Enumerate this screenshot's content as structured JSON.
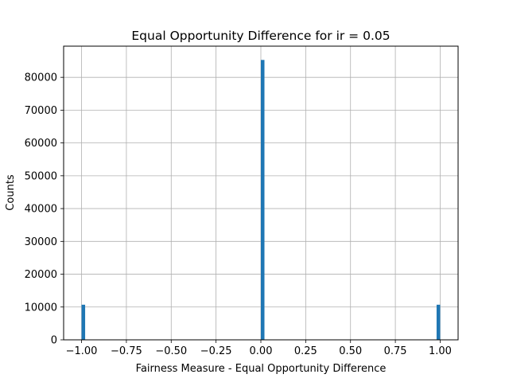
{
  "chart_data": {
    "type": "bar",
    "title": "Equal Opportunity Difference for ir = 0.05",
    "xlabel": "Fairness Measure - Equal Opportunity Difference",
    "ylabel": "Counts",
    "xlim": [
      -1.1,
      1.1
    ],
    "ylim": [
      0,
      89500
    ],
    "x_ticks": [
      -1.0,
      -0.75,
      -0.5,
      -0.25,
      0.0,
      0.25,
      0.5,
      0.75,
      1.0
    ],
    "x_tick_labels": [
      "−1.00",
      "−0.75",
      "−0.50",
      "−0.25",
      "0.00",
      "0.25",
      "0.50",
      "0.75",
      "1.00"
    ],
    "y_ticks": [
      0,
      10000,
      20000,
      30000,
      40000,
      50000,
      60000,
      70000,
      80000
    ],
    "y_tick_labels": [
      "0",
      "10000",
      "20000",
      "30000",
      "40000",
      "50000",
      "60000",
      "70000",
      "80000"
    ],
    "grid": true,
    "bin_width": 0.02,
    "bars": [
      {
        "x_start": -1.0,
        "x_end": -0.98,
        "value": 10700
      },
      {
        "x_start": 0.0,
        "x_end": 0.02,
        "value": 85300
      },
      {
        "x_start": 0.98,
        "x_end": 1.0,
        "value": 10700
      }
    ],
    "bar_color": "#1f77b4"
  }
}
